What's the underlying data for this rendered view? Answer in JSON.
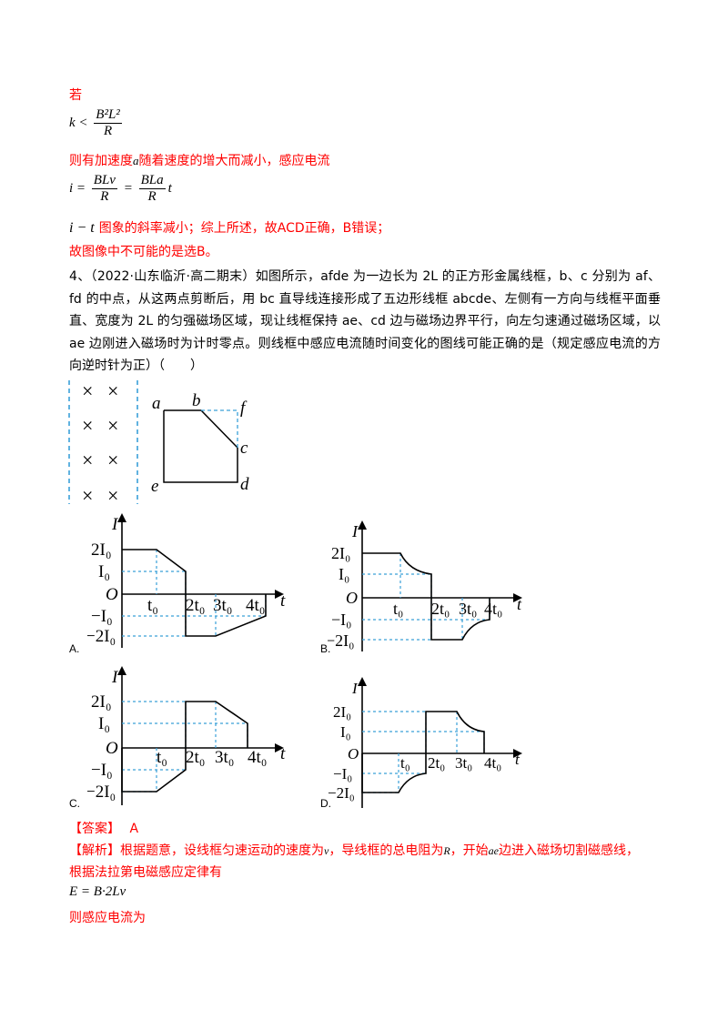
{
  "top": {
    "line1": "若",
    "k_lhs": "k <",
    "k_num": "B²L²",
    "k_den": "R",
    "line2": "则有加速度",
    "line2_a": "a",
    "line2_rest": "随着速度的增大而减小，感应电流",
    "i_lhs": "i =",
    "i_num1": "BLv",
    "i_den1": "R",
    "i_eq": "=",
    "i_num2": "BLa",
    "i_den2": "R",
    "i_t": "t",
    "it_label": "i − t",
    "line3": "图象的斜率减小；综上所述，故ACD正确，B错误；",
    "line4": "故图像中不可能的是选B。"
  },
  "question": {
    "text": "4、（2022·山东临沂·高二期末）如图所示，afde 为一边长为 2L 的正方形金属线框，b、c 分别为 af、fd 的中点，从这两点剪断后，用 bc 直导线连接形成了五边形线框 abcde、左侧有一方向与线框平面垂直、宽度为 2L 的匀强磁场区域，现让线框保持 ae、cd 边与磁场边界平行，向左匀速通过磁场区域，以 ae 边刚进入磁场时为计时零点。则线框中感应电流随时间变化的图线可能正确的是（规定感应电流的方向逆时针为正）（　　）"
  },
  "figure": {
    "labels": {
      "a": "a",
      "b": "b",
      "f": "f",
      "c": "c",
      "d": "d",
      "e": "e"
    },
    "cross": "×"
  },
  "graph_labels": {
    "I": "I",
    "O": "O",
    "t": "t",
    "two_I0": "2I₀",
    "I0": "I₀",
    "neg_I0": "−I₀",
    "neg_two_I0": "−2I₀",
    "t0": "t₀",
    "two_t0": "2t₀",
    "three_t0": "3t₀",
    "four_t0": "4t₀"
  },
  "options": {
    "A": "A.",
    "B": "B.",
    "C": "C.",
    "D": "D."
  },
  "answer": {
    "label": "【答案】",
    "value": "A"
  },
  "analysis": {
    "label": "【解析】",
    "text1": "根据题意，设线框匀速运动的速度为",
    "v": "v",
    "text2": "，导线框的总电阻为",
    "R": "R",
    "text3": "，开始",
    "ae": "ae",
    "text4": "边进入磁场切割磁感线，",
    "line2": "根据法拉第电磁感应定律有",
    "eq": "E = B·2Lv",
    "line3": "则感应电流为"
  }
}
